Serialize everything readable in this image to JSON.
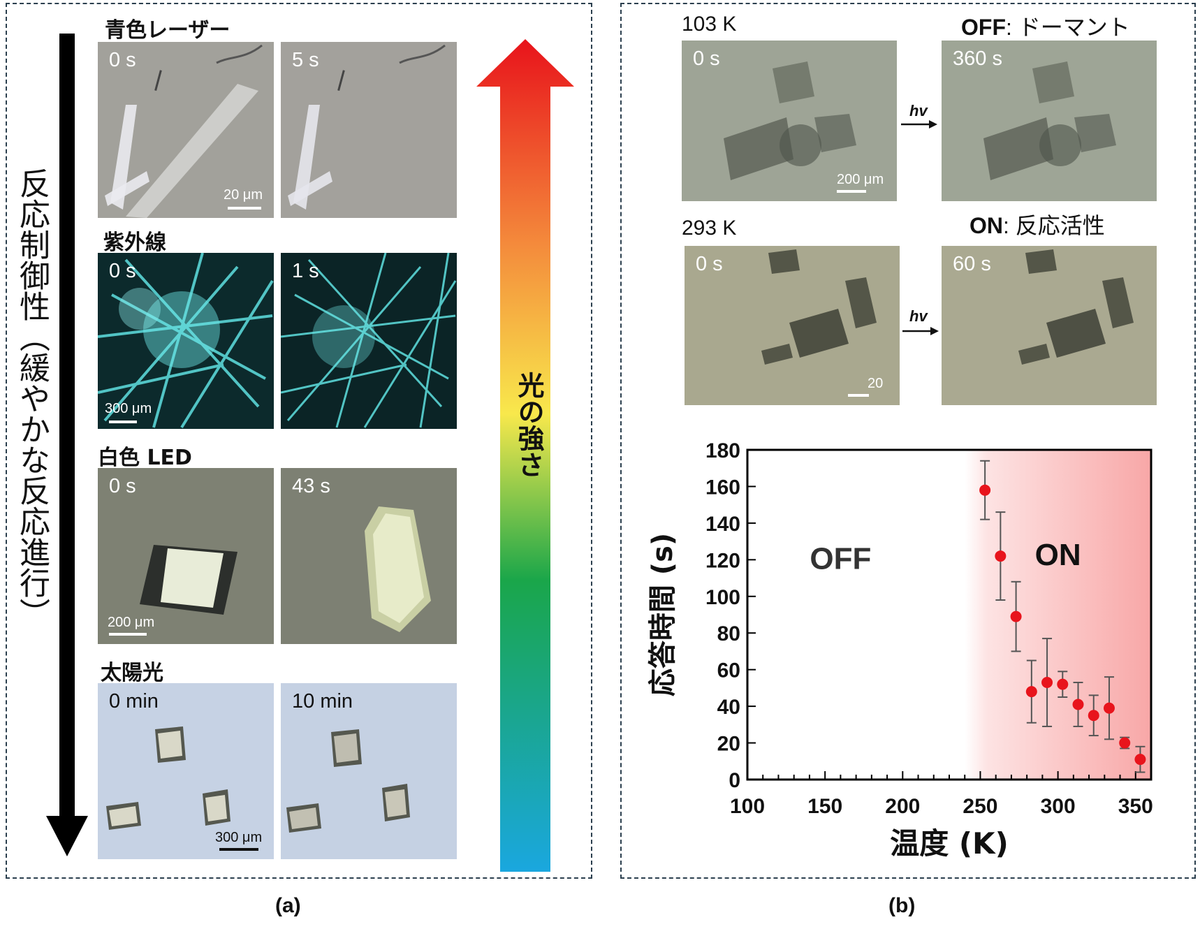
{
  "panel_a": {
    "caption": "(a)",
    "left_axis_label": "反応制御性（緩やかな反応進行）",
    "right_axis_label": "光の強さ",
    "rows": [
      {
        "title": "青色レーザー",
        "t0": "0 s",
        "t1": "5 s",
        "scale": "20 μm",
        "theme": "gray"
      },
      {
        "title": "紫外線",
        "t0": "0 s",
        "t1": "1 s",
        "scale": "300 μm",
        "theme": "uv"
      },
      {
        "title": "白色 LED",
        "t0": "0 s",
        "t1": "43 s",
        "scale": "200 μm",
        "theme": "led"
      },
      {
        "title": "太陽光",
        "t0": "0 min",
        "t1": "10 min",
        "scale": "300 μm",
        "theme": "sun"
      }
    ]
  },
  "panel_b": {
    "caption": "(b)",
    "hv": "hv",
    "row1": {
      "temp": "103 K",
      "state_bold": "OFF",
      "state_rest": ": ドーマント",
      "t0": "0 s",
      "t1": "360 s",
      "scale": "200 μm"
    },
    "row2": {
      "temp": "293 K",
      "state_bold": "ON",
      "state_rest": ": 反応活性",
      "t0": "0 s",
      "t1": "60 s",
      "scale": "20"
    },
    "chart": {
      "off_label": "OFF",
      "on_label": "ON",
      "ylabel": "応答時間 (s)",
      "xlabel": "温度 (K)",
      "x_ticks": [
        "100",
        "150",
        "200",
        "250",
        "300",
        "350"
      ],
      "y_ticks": [
        "0",
        "20",
        "40",
        "60",
        "80",
        "100",
        "120",
        "140",
        "160",
        "180"
      ]
    }
  },
  "chart_data": {
    "type": "scatter",
    "xlabel": "温度 (K)",
    "ylabel": "応答時間 (s)",
    "xlim": [
      100,
      360
    ],
    "ylim": [
      0,
      180
    ],
    "on_region_start": 240,
    "color": "#e8141c",
    "points": [
      {
        "x": 253,
        "y": 158,
        "err": 16
      },
      {
        "x": 263,
        "y": 122,
        "err": 24
      },
      {
        "x": 273,
        "y": 89,
        "err": 19
      },
      {
        "x": 283,
        "y": 48,
        "err": 17
      },
      {
        "x": 293,
        "y": 53,
        "err": 24
      },
      {
        "x": 303,
        "y": 52,
        "err": 7
      },
      {
        "x": 313,
        "y": 41,
        "err": 12
      },
      {
        "x": 323,
        "y": 35,
        "err": 11
      },
      {
        "x": 333,
        "y": 39,
        "err": 17
      },
      {
        "x": 343,
        "y": 20,
        "err": 3
      },
      {
        "x": 353,
        "y": 11,
        "err": 7
      }
    ]
  }
}
